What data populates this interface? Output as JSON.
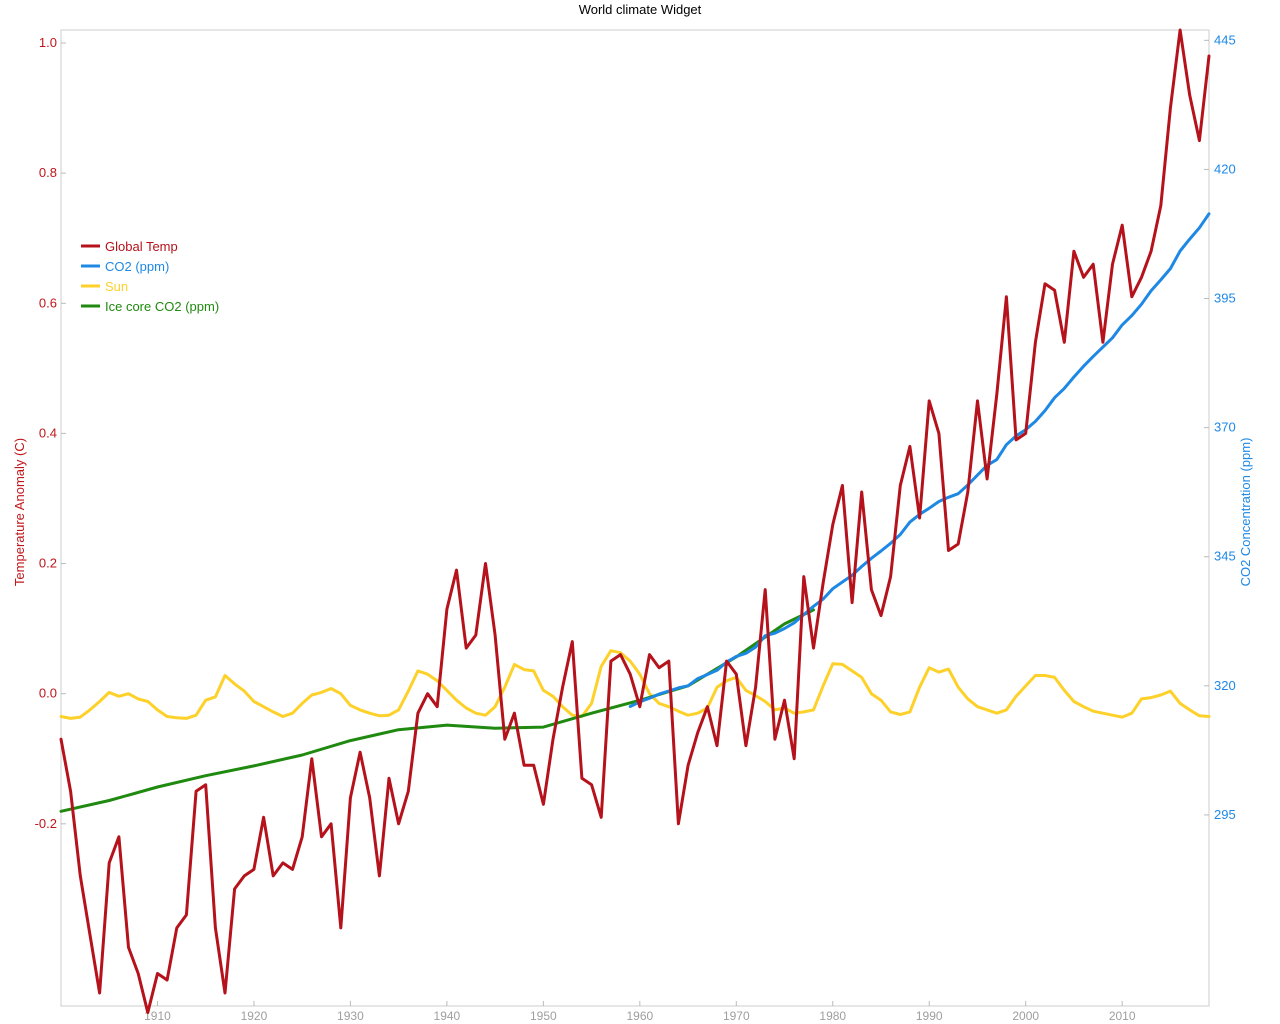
{
  "chart_data": {
    "type": "line",
    "title": "World climate Widget",
    "x_range": [
      1900,
      2019
    ],
    "x_ticks": [
      1910,
      1920,
      1930,
      1940,
      1950,
      1960,
      1970,
      1980,
      1990,
      2000,
      2010
    ],
    "y_left": {
      "label": "Temperature Anomaly (C)",
      "range": [
        -0.48,
        1.02
      ],
      "ticks": [
        -0.2,
        0.0,
        0.2,
        0.4,
        0.6,
        0.8,
        1.0
      ],
      "tick_labels": [
        "-0.2",
        "0.0",
        "0.2",
        "0.4",
        "0.6",
        "0.8",
        "1.0"
      ],
      "color": "#c0161b"
    },
    "y_right": {
      "label": "CO2 Concentration (ppm)",
      "range": [
        258,
        447
      ],
      "ticks": [
        295,
        320,
        345,
        370,
        395,
        420,
        445
      ],
      "tick_labels": [
        "295",
        "320",
        "345",
        "370",
        "395",
        "420",
        "445"
      ],
      "color": "#1e88e5"
    },
    "legend": {
      "position": "top-left"
    },
    "series": [
      {
        "name": "Global Temp",
        "axis": "left",
        "color": "#b5121b",
        "x": [
          1900,
          1901,
          1902,
          1903,
          1904,
          1905,
          1906,
          1907,
          1908,
          1909,
          1910,
          1911,
          1912,
          1913,
          1914,
          1915,
          1916,
          1917,
          1918,
          1919,
          1920,
          1921,
          1922,
          1923,
          1924,
          1925,
          1926,
          1927,
          1928,
          1929,
          1930,
          1931,
          1932,
          1933,
          1934,
          1935,
          1936,
          1937,
          1938,
          1939,
          1940,
          1941,
          1942,
          1943,
          1944,
          1945,
          1946,
          1947,
          1948,
          1949,
          1950,
          1951,
          1952,
          1953,
          1954,
          1955,
          1956,
          1957,
          1958,
          1959,
          1960,
          1961,
          1962,
          1963,
          1964,
          1965,
          1966,
          1967,
          1968,
          1969,
          1970,
          1971,
          1972,
          1973,
          1974,
          1975,
          1976,
          1977,
          1978,
          1979,
          1980,
          1981,
          1982,
          1983,
          1984,
          1985,
          1986,
          1987,
          1988,
          1989,
          1990,
          1991,
          1992,
          1993,
          1994,
          1995,
          1996,
          1997,
          1998,
          1999,
          2000,
          2001,
          2002,
          2003,
          2004,
          2005,
          2006,
          2007,
          2008,
          2009,
          2010,
          2011,
          2012,
          2013,
          2014,
          2015,
          2016,
          2017,
          2018,
          2019
        ],
        "values": [
          -0.07,
          -0.15,
          -0.28,
          -0.37,
          -0.46,
          -0.26,
          -0.22,
          -0.39,
          -0.43,
          -0.49,
          -0.43,
          -0.44,
          -0.36,
          -0.34,
          -0.15,
          -0.14,
          -0.36,
          -0.46,
          -0.3,
          -0.28,
          -0.27,
          -0.19,
          -0.28,
          -0.26,
          -0.27,
          -0.22,
          -0.1,
          -0.22,
          -0.2,
          -0.36,
          -0.16,
          -0.09,
          -0.16,
          -0.28,
          -0.13,
          -0.2,
          -0.15,
          -0.03,
          0.0,
          -0.02,
          0.13,
          0.19,
          0.07,
          0.09,
          0.2,
          0.09,
          -0.07,
          -0.03,
          -0.11,
          -0.11,
          -0.17,
          -0.07,
          0.01,
          0.08,
          -0.13,
          -0.14,
          -0.19,
          0.05,
          0.06,
          0.03,
          -0.02,
          0.06,
          0.04,
          0.05,
          -0.2,
          -0.11,
          -0.06,
          -0.02,
          -0.08,
          0.05,
          0.03,
          -0.08,
          0.01,
          0.16,
          -0.07,
          -0.01,
          -0.1,
          0.18,
          0.07,
          0.17,
          0.26,
          0.32,
          0.14,
          0.31,
          0.16,
          0.12,
          0.18,
          0.32,
          0.38,
          0.27,
          0.45,
          0.4,
          0.22,
          0.23,
          0.31,
          0.45,
          0.33,
          0.46,
          0.61,
          0.39,
          0.4,
          0.54,
          0.63,
          0.62,
          0.54,
          0.68,
          0.64,
          0.66,
          0.54,
          0.66,
          0.72,
          0.61,
          0.64,
          0.68,
          0.75,
          0.9,
          1.02,
          0.92,
          0.85,
          0.98
        ]
      },
      {
        "name": "CO2 (ppm)",
        "axis": "right",
        "color": "#1e88e5",
        "x": [
          1959,
          1960,
          1961,
          1962,
          1963,
          1964,
          1965,
          1966,
          1967,
          1968,
          1969,
          1970,
          1971,
          1972,
          1973,
          1974,
          1975,
          1976,
          1977,
          1978,
          1979,
          1980,
          1981,
          1982,
          1983,
          1984,
          1985,
          1986,
          1987,
          1988,
          1989,
          1990,
          1991,
          1992,
          1993,
          1994,
          1995,
          1996,
          1997,
          1998,
          1999,
          2000,
          2001,
          2002,
          2003,
          2004,
          2005,
          2006,
          2007,
          2008,
          2009,
          2010,
          2011,
          2012,
          2013,
          2014,
          2015,
          2016,
          2017,
          2018,
          2019
        ],
        "values": [
          316.0,
          316.9,
          317.6,
          318.4,
          319.0,
          319.6,
          320.0,
          321.4,
          322.2,
          323.0,
          324.6,
          325.7,
          326.3,
          327.5,
          329.7,
          330.2,
          331.1,
          332.2,
          333.8,
          335.4,
          336.8,
          338.8,
          340.1,
          341.4,
          343.1,
          344.7,
          346.1,
          347.6,
          349.3,
          351.7,
          353.2,
          354.4,
          355.7,
          356.5,
          357.2,
          358.9,
          360.8,
          362.7,
          363.8,
          366.7,
          368.4,
          369.6,
          371.2,
          373.3,
          375.8,
          377.6,
          379.8,
          381.9,
          383.8,
          385.6,
          387.4,
          389.9,
          391.7,
          393.9,
          396.5,
          398.6,
          400.8,
          404.2,
          406.5,
          408.7,
          411.4
        ]
      },
      {
        "name": "Sun",
        "axis": "left",
        "color": "#fdd12a",
        "x": [
          1900,
          1901,
          1902,
          1903,
          1904,
          1905,
          1906,
          1907,
          1908,
          1909,
          1910,
          1911,
          1912,
          1913,
          1914,
          1915,
          1916,
          1917,
          1918,
          1919,
          1920,
          1921,
          1922,
          1923,
          1924,
          1925,
          1926,
          1927,
          1928,
          1929,
          1930,
          1931,
          1932,
          1933,
          1934,
          1935,
          1936,
          1937,
          1938,
          1939,
          1940,
          1941,
          1942,
          1943,
          1944,
          1945,
          1946,
          1947,
          1948,
          1949,
          1950,
          1951,
          1952,
          1953,
          1954,
          1955,
          1956,
          1957,
          1958,
          1959,
          1960,
          1961,
          1962,
          1963,
          1964,
          1965,
          1966,
          1967,
          1968,
          1969,
          1970,
          1971,
          1972,
          1973,
          1974,
          1975,
          1976,
          1977,
          1978,
          1979,
          1980,
          1981,
          1982,
          1983,
          1984,
          1985,
          1986,
          1987,
          1988,
          1989,
          1990,
          1991,
          1992,
          1993,
          1994,
          1995,
          1996,
          1997,
          1998,
          1999,
          2000,
          2001,
          2002,
          2003,
          2004,
          2005,
          2006,
          2007,
          2008,
          2009,
          2010,
          2011,
          2012,
          2013,
          2014,
          2015,
          2016,
          2017,
          2018,
          2019
        ],
        "values": [
          -0.035,
          -0.038,
          -0.036,
          -0.025,
          -0.012,
          0.002,
          -0.004,
          0.0,
          -0.008,
          -0.012,
          -0.025,
          -0.035,
          -0.037,
          -0.038,
          -0.033,
          -0.01,
          -0.005,
          0.028,
          0.015,
          0.004,
          -0.012,
          -0.02,
          -0.028,
          -0.035,
          -0.03,
          -0.015,
          -0.002,
          0.002,
          0.008,
          0.0,
          -0.018,
          -0.025,
          -0.03,
          -0.034,
          -0.033,
          -0.025,
          0.004,
          0.035,
          0.03,
          0.02,
          0.005,
          -0.01,
          -0.022,
          -0.03,
          -0.033,
          -0.02,
          0.01,
          0.045,
          0.037,
          0.035,
          0.005,
          -0.004,
          -0.02,
          -0.033,
          -0.035,
          -0.015,
          0.042,
          0.066,
          0.063,
          0.05,
          0.03,
          0.0,
          -0.015,
          -0.02,
          -0.027,
          -0.033,
          -0.03,
          -0.022,
          0.01,
          0.02,
          0.025,
          0.005,
          -0.003,
          -0.012,
          -0.025,
          -0.022,
          -0.03,
          -0.028,
          -0.025,
          0.012,
          0.046,
          0.045,
          0.035,
          0.025,
          0.0,
          -0.01,
          -0.028,
          -0.032,
          -0.028,
          0.01,
          0.04,
          0.033,
          0.038,
          0.01,
          -0.008,
          -0.02,
          -0.025,
          -0.03,
          -0.025,
          -0.004,
          0.012,
          0.028,
          0.028,
          0.025,
          0.005,
          -0.012,
          -0.02,
          -0.027,
          -0.03,
          -0.033,
          -0.036,
          -0.03,
          -0.008,
          -0.006,
          -0.002,
          0.004,
          -0.015,
          -0.025,
          -0.034,
          -0.035
        ]
      },
      {
        "name": "Ice core CO2 (ppm)",
        "axis": "right",
        "color": "#1f8a0f",
        "x": [
          1900,
          1905,
          1910,
          1915,
          1920,
          1925,
          1930,
          1935,
          1940,
          1945,
          1950,
          1955,
          1960,
          1965,
          1970,
          1975,
          1978
        ],
        "values": [
          295.7,
          297.8,
          300.4,
          302.6,
          304.5,
          306.6,
          309.4,
          311.5,
          312.4,
          311.8,
          312.0,
          314.7,
          317.2,
          320.0,
          325.6,
          332.0,
          334.7
        ]
      }
    ]
  }
}
